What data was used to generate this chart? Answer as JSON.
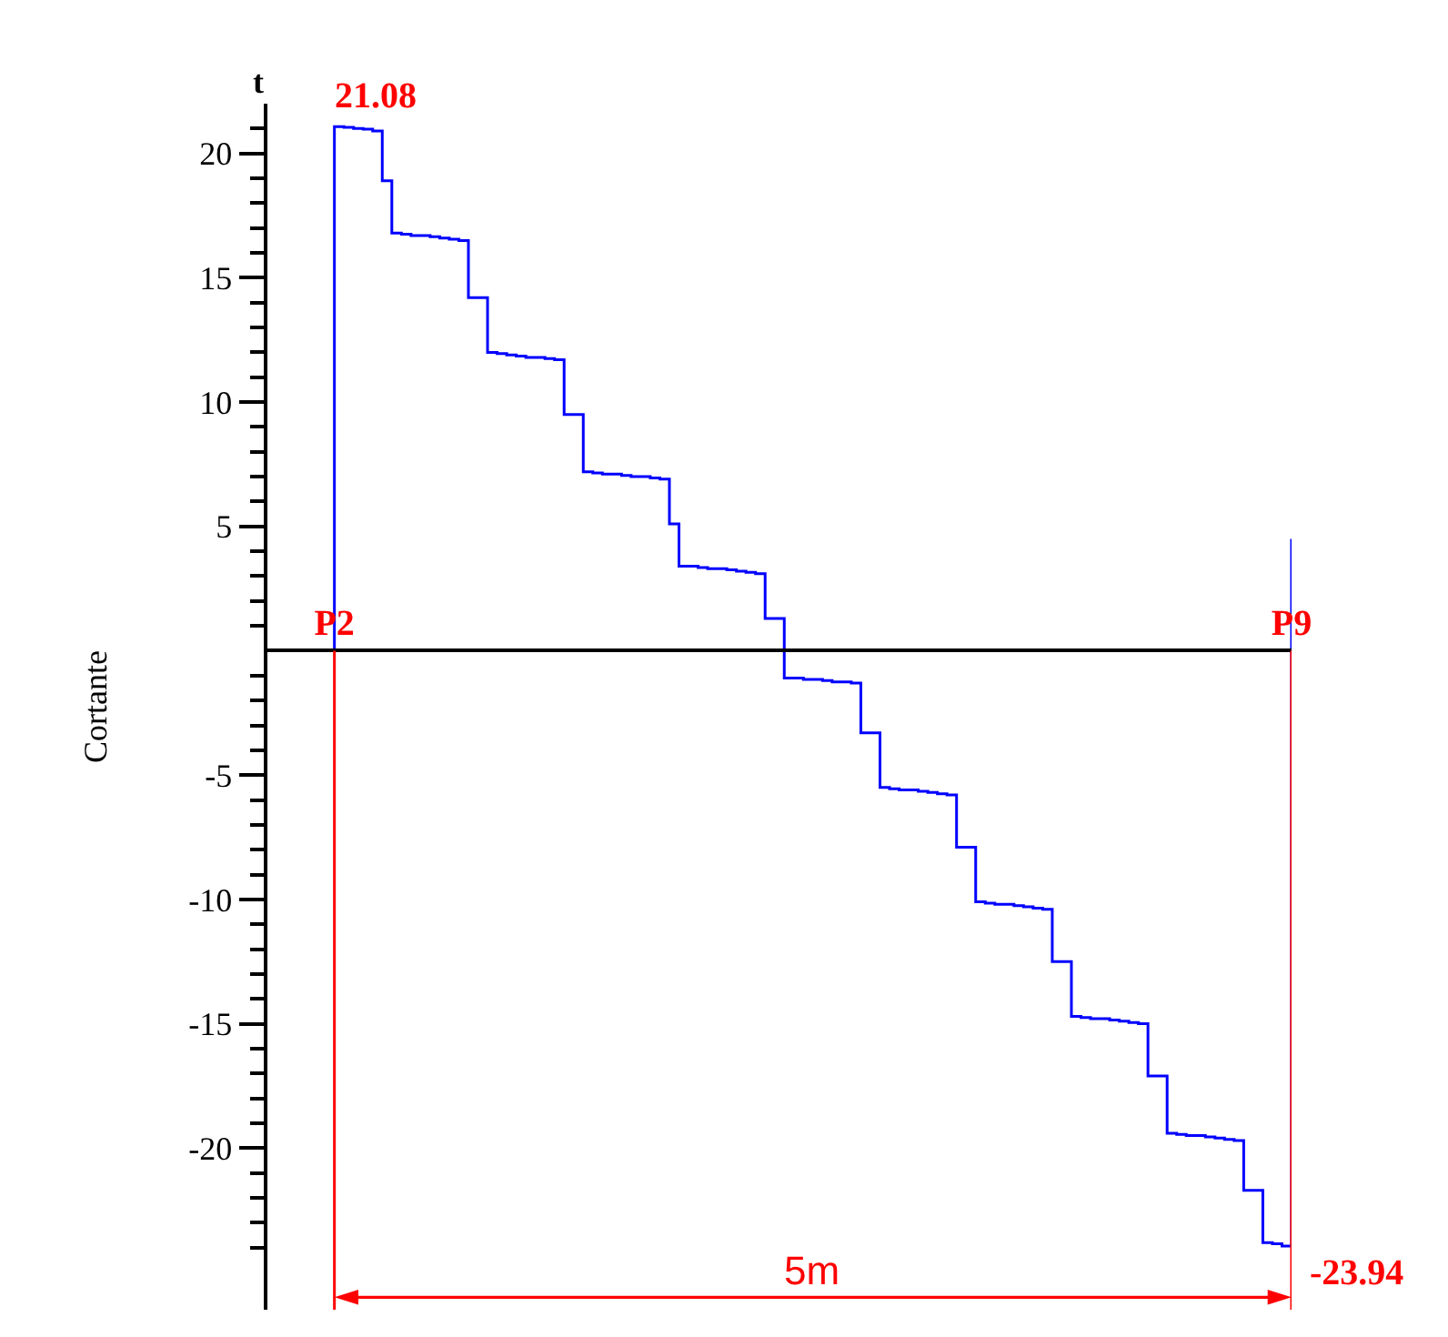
{
  "chart_data": {
    "type": "step",
    "ylabel": "Cortante",
    "categories": [
      null,
      null,
      null,
      null,
      null,
      null,
      null,
      "P2",
      null,
      null,
      null,
      null,
      null,
      null,
      null,
      null,
      null,
      null,
      null,
      null,
      null,
      null,
      null,
      null,
      null,
      null,
      null,
      null,
      null,
      null,
      null,
      null,
      null,
      null,
      null,
      null,
      null,
      null,
      null,
      null,
      null,
      null,
      null,
      null,
      null,
      null,
      null,
      null,
      null,
      null,
      null,
      null,
      null,
      null,
      null,
      null,
      null,
      null,
      null,
      null,
      null,
      null,
      null,
      null,
      null,
      null,
      null,
      null,
      null,
      null,
      null,
      null,
      null,
      null,
      null,
      null,
      null,
      null,
      null,
      null,
      null,
      null,
      null,
      null,
      null,
      null,
      null,
      null,
      null,
      null,
      null,
      null,
      null,
      null,
      null,
      null,
      null,
      null,
      null,
      null,
      null,
      null,
      null,
      null,
      null,
      null,
      null,
      "P9"
    ],
    "series": [
      {
        "color": "#0000ff",
        "values": [
          null,
          null,
          null,
          null,
          null,
          null,
          0,
          21.08,
          21.05,
          21.0,
          20.98,
          20.9,
          18.9,
          16.8,
          16.75,
          16.7,
          16.7,
          16.65,
          16.6,
          16.55,
          16.5,
          14.2,
          14.2,
          12.0,
          11.95,
          11.9,
          11.85,
          11.8,
          11.8,
          11.75,
          11.7,
          9.5,
          9.5,
          7.2,
          7.15,
          7.1,
          7.1,
          7.05,
          7.0,
          7.0,
          6.95,
          6.9,
          5.1,
          3.4,
          3.4,
          3.35,
          3.3,
          3.3,
          3.25,
          3.2,
          3.15,
          3.1,
          1.3,
          1.3,
          -1.1,
          -1.1,
          -1.15,
          -1.15,
          -1.2,
          -1.25,
          -1.25,
          -1.3,
          -3.3,
          -3.3,
          -5.5,
          -5.55,
          -5.6,
          -5.6,
          -5.65,
          -5.7,
          -5.75,
          -5.8,
          -7.9,
          -7.9,
          -10.1,
          -10.15,
          -10.2,
          -10.2,
          -10.25,
          -10.3,
          -10.35,
          -10.4,
          -12.5,
          -12.5,
          -14.7,
          -14.75,
          -14.8,
          -14.8,
          -14.85,
          -14.9,
          -14.95,
          -15.0,
          -17.1,
          -17.1,
          -19.4,
          -19.45,
          -19.5,
          -19.5,
          -19.55,
          -19.6,
          -19.65,
          -19.7,
          -21.7,
          -21.7,
          -23.8,
          -23.85,
          -23.94,
          4.5
        ]
      }
    ],
    "ylim": [
      -26.5,
      22
    ],
    "yticks": [
      20,
      15,
      10,
      5,
      -5,
      -10,
      -15,
      -20,
      {
        "value": 21,
        "label": null
      },
      {
        "value": 19,
        "label": null
      },
      {
        "value": 18,
        "label": null
      },
      {
        "value": 17,
        "label": null
      },
      {
        "value": 16,
        "label": null
      },
      {
        "value": 14,
        "label": null
      },
      {
        "value": 13,
        "label": null
      },
      {
        "value": 12,
        "label": null
      },
      {
        "value": 11,
        "label": null
      },
      {
        "value": 9,
        "label": null
      },
      {
        "value": 8,
        "label": null
      },
      {
        "value": 7,
        "label": null
      },
      {
        "value": 6,
        "label": null
      },
      {
        "value": 4,
        "label": null
      },
      {
        "value": 3,
        "label": null
      },
      {
        "value": 2,
        "label": null
      },
      {
        "value": 1,
        "label": null
      },
      {
        "value": -1,
        "label": null
      },
      {
        "value": -2,
        "label": null
      },
      {
        "value": -3,
        "label": null
      },
      {
        "value": -4,
        "label": null
      },
      {
        "value": -6,
        "label": null
      },
      {
        "value": -7,
        "label": null
      },
      {
        "value": -8,
        "label": null
      },
      {
        "value": -9,
        "label": null
      },
      {
        "value": -11,
        "label": null
      },
      {
        "value": -12,
        "label": null
      },
      {
        "value": -13,
        "label": null
      },
      {
        "value": -14,
        "label": null
      },
      {
        "value": -16,
        "label": null
      },
      {
        "value": -17,
        "label": null
      },
      {
        "value": -18,
        "label": null
      },
      {
        "value": -19,
        "label": null
      },
      {
        "value": -21,
        "label": null
      },
      {
        "value": -22,
        "label": null
      },
      {
        "value": -23,
        "label": null
      },
      {
        "value": -24,
        "label": null
      }
    ],
    "marker": "none",
    "line_style": "solid",
    "ref_lines": [
      {
        "axis": "x",
        "value": "P2",
        "color": "#ff0000"
      },
      {
        "axis": "x",
        "value": "P9",
        "color": "#ff0000"
      }
    ],
    "annotations": [
      {
        "text": "21.08",
        "x": "P2",
        "y": 21.08
      },
      {
        "text": "-23.94",
        "x": "P9",
        "y": -23.94
      },
      "t",
      "5m"
    ]
  }
}
